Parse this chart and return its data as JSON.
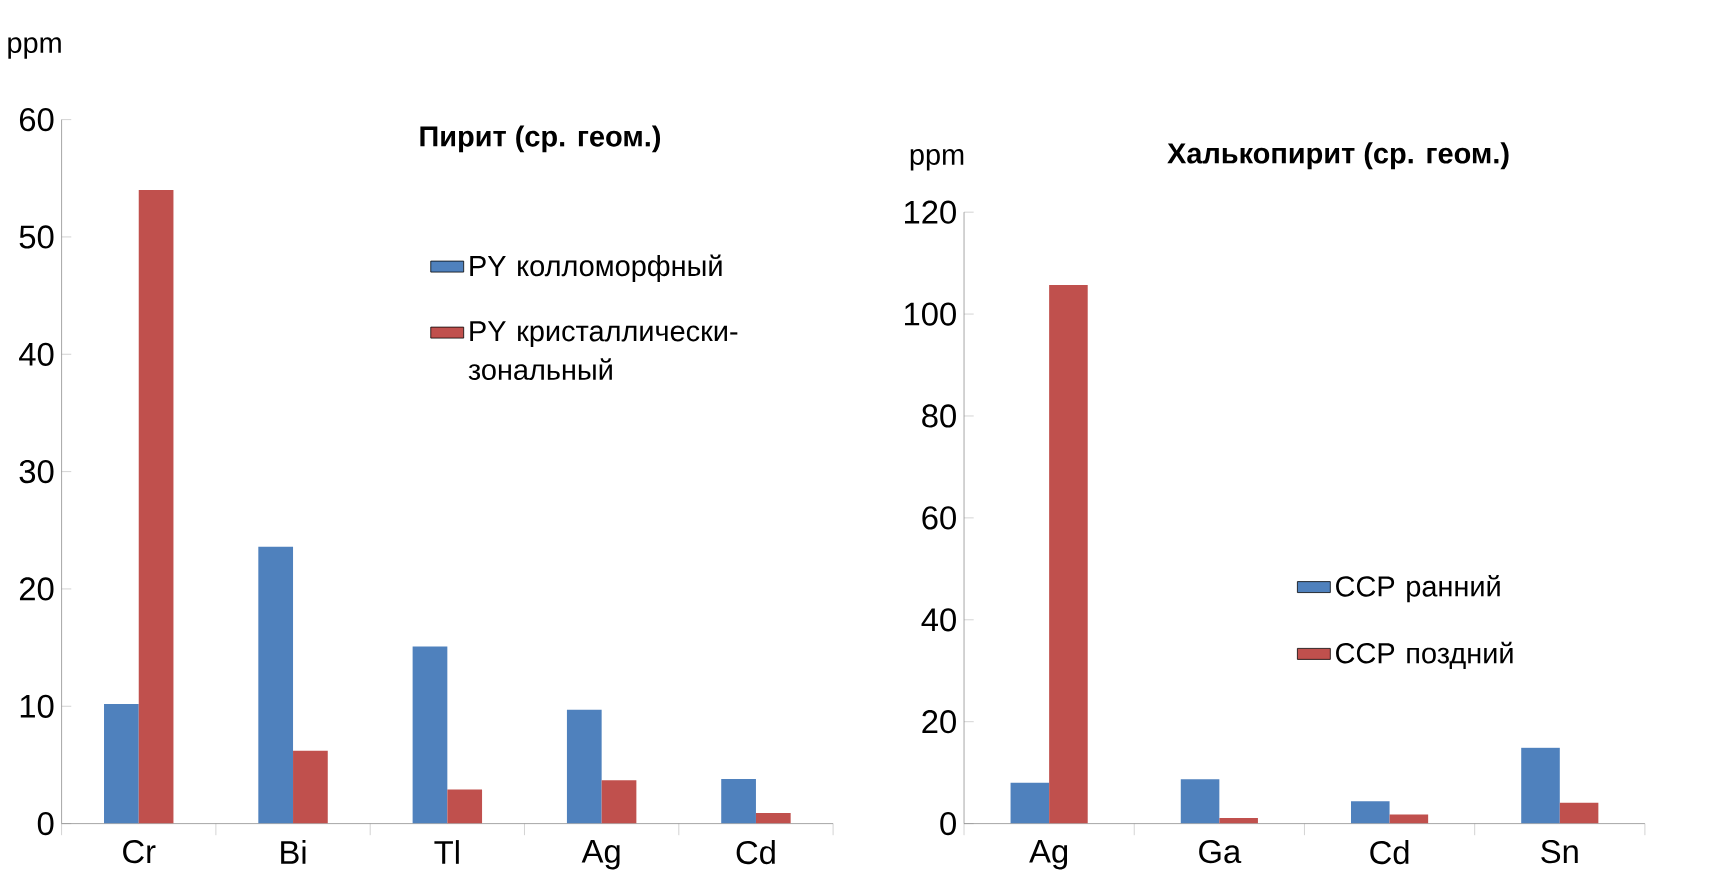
{
  "chart_data": [
    {
      "type": "bar",
      "title": "Пирит (ср. геом.)",
      "ylabel": "ppm",
      "categories": [
        "Cr",
        "Bi",
        "Tl",
        "Ag",
        "Cd"
      ],
      "ylim": [
        0,
        60
      ],
      "yticks": [
        0,
        10,
        20,
        30,
        40,
        50,
        60
      ],
      "legend": "right",
      "series": [
        {
          "name": "PY колломорфный",
          "color": "#4f81bd",
          "values": [
            10.2,
            23.6,
            15.1,
            9.7,
            3.8
          ]
        },
        {
          "name": "PY кристаллически-зональный",
          "color": "#c0504d",
          "values": [
            54,
            6.2,
            2.9,
            3.7,
            0.9
          ]
        }
      ]
    },
    {
      "type": "bar",
      "title": "Халькопирит (ср. геом.)",
      "ylabel": "ppm",
      "categories": [
        "Ag",
        "Ga",
        "Cd",
        "Sn"
      ],
      "ylim": [
        0,
        120
      ],
      "yticks": [
        0,
        20,
        40,
        60,
        80,
        100,
        120
      ],
      "legend": "right",
      "series": [
        {
          "name": "CCP ранний",
          "color": "#4f81bd",
          "values": [
            8.0,
            8.7,
            4.4,
            14.9
          ]
        },
        {
          "name": "CCP поздний",
          "color": "#c0504d",
          "values": [
            105.7,
            1.1,
            1.8,
            4.1
          ]
        }
      ]
    }
  ]
}
